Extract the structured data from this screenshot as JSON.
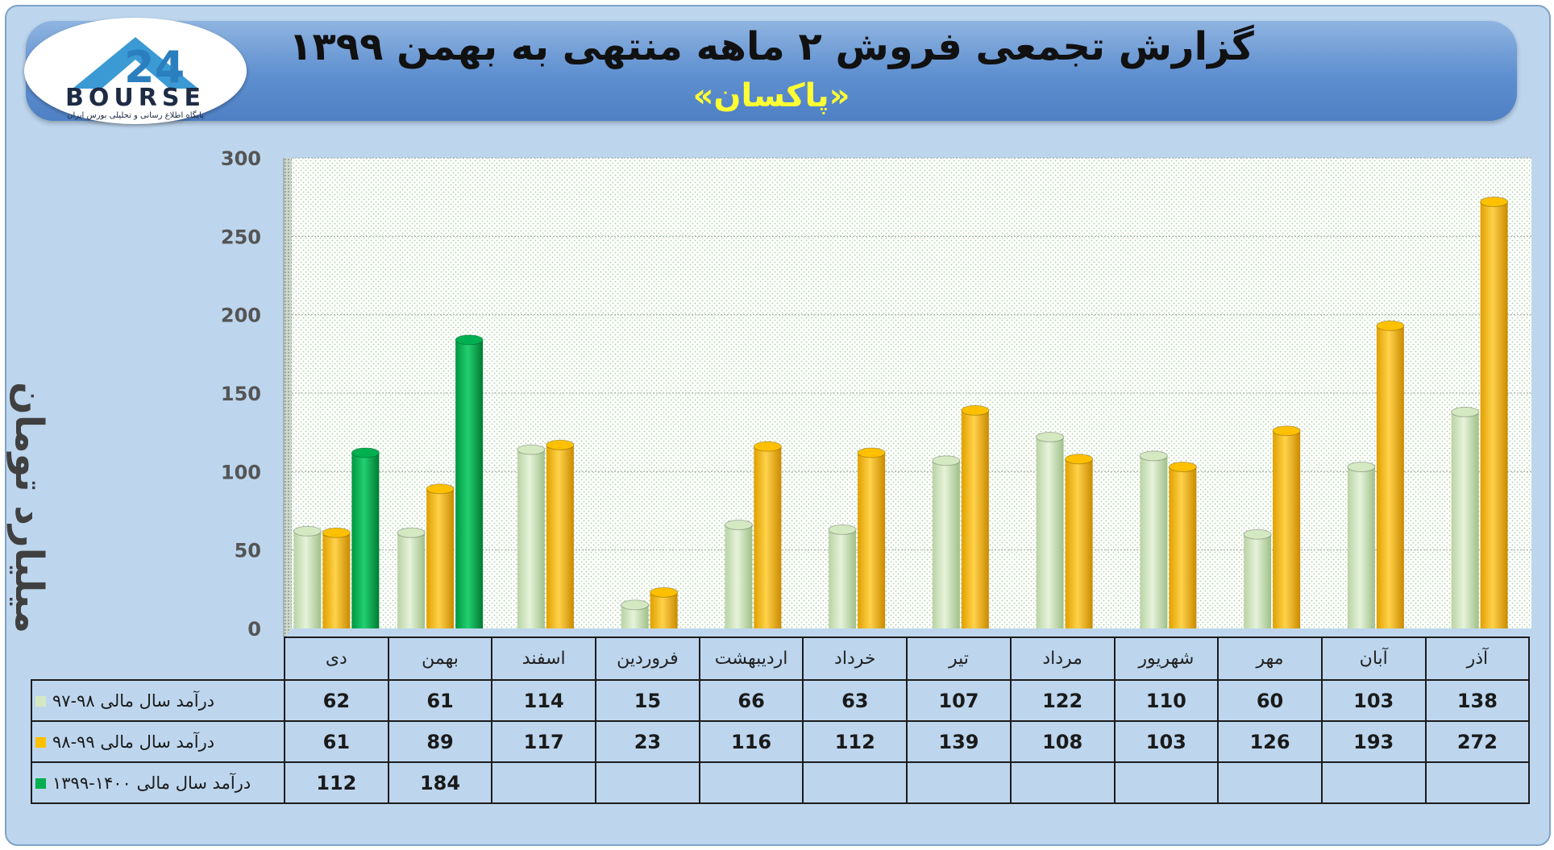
{
  "header": {
    "title": "گزارش تجمعی فروش ۲ ماهه منتهی به بهمن ۱۳۹۹",
    "subtitle": "«پاکسان»"
  },
  "logo": {
    "word": "BOURSE",
    "tagline": "پایگاه اطلاع رسانی و تحلیلی بورس ایران"
  },
  "colors": {
    "series_1": "#d4e8c2",
    "series_2": "#ffc000",
    "series_3": "#00b050",
    "plot_bg": "#ffffff",
    "page_bg": "#bdd6ee"
  },
  "chart_data": {
    "type": "bar",
    "ylabel": "میلیارد تومان",
    "ylim": [
      0,
      300
    ],
    "y_ticks": [
      0,
      50,
      100,
      150,
      200,
      250,
      300
    ],
    "grid": true,
    "categories": [
      "دی",
      "بهمن",
      "اسفند",
      "فروردین",
      "اردیبهشت",
      "خرداد",
      "تیر",
      "مرداد",
      "شهریور",
      "مهر",
      "آبان",
      "آذر"
    ],
    "series": [
      {
        "name": "درآمد سال مالی ۹۸-۹۷",
        "values": [
          62,
          61,
          114,
          15,
          66,
          63,
          107,
          122,
          110,
          60,
          103,
          138
        ]
      },
      {
        "name": "درآمد سال مالی ۹۹-۹۸",
        "values": [
          61,
          89,
          117,
          23,
          116,
          112,
          139,
          108,
          103,
          126,
          193,
          272
        ]
      },
      {
        "name": "درآمد سال مالی ۱۴۰۰-۱۳۹۹",
        "values": [
          112,
          184,
          null,
          null,
          null,
          null,
          null,
          null,
          null,
          null,
          null,
          null
        ]
      }
    ]
  }
}
